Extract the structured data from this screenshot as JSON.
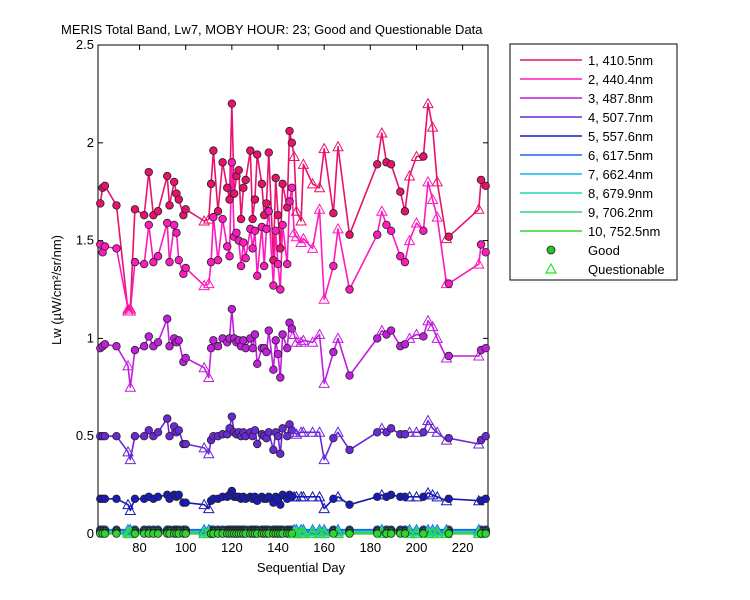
{
  "chart_data": {
    "type": "line",
    "title": "MERIS Total Band,  Lw7, MOBY HOUR: 23;  Good and Questionable Data",
    "xlabel": "Sequential Day",
    "ylabel": "Lw (µW/cm²/sr/nm)",
    "xlim": [
      62,
      231
    ],
    "ylim": [
      0,
      2.5
    ],
    "xticks": [
      80,
      100,
      120,
      140,
      160,
      180,
      200,
      220
    ],
    "yticks": [
      0,
      0.5,
      1,
      1.5,
      2,
      2.5
    ],
    "ytick_labels": [
      "0",
      "0.5",
      "1",
      "1.5",
      "2",
      "2.5"
    ],
    "grid": false,
    "legend_position": "outside-right-top",
    "x": [
      63,
      64,
      65,
      70,
      75,
      76,
      78,
      82,
      84,
      86,
      88,
      92,
      93,
      95,
      96,
      97,
      99,
      100,
      108,
      110,
      111,
      112,
      114,
      116,
      118,
      119,
      120,
      121,
      122,
      123,
      124,
      125,
      126,
      128,
      129,
      130,
      131,
      133,
      134,
      135,
      136,
      138,
      139,
      140,
      141,
      142,
      144,
      145,
      146,
      147,
      148,
      150,
      151,
      155,
      158,
      160,
      164,
      166,
      171,
      183,
      185,
      187,
      189,
      193,
      195,
      197,
      200,
      203,
      205,
      207,
      209,
      213,
      214,
      227,
      228,
      230
    ],
    "series": [
      {
        "name": "1, 410.5nm",
        "color": "#e8126c",
        "values": [
          1.69,
          1.77,
          1.78,
          1.68,
          1.14,
          1.15,
          1.66,
          1.63,
          1.85,
          1.63,
          1.65,
          1.83,
          1.68,
          1.8,
          1.74,
          1.71,
          1.63,
          1.66,
          1.6,
          1.61,
          1.79,
          1.96,
          1.65,
          1.9,
          1.77,
          1.71,
          2.2,
          1.74,
          1.83,
          1.86,
          1.61,
          1.77,
          1.81,
          1.96,
          1.61,
          1.71,
          1.94,
          1.79,
          1.63,
          1.69,
          1.95,
          1.4,
          1.82,
          1.63,
          1.46,
          1.79,
          1.67,
          2.06,
          2.0,
          1.93,
          1.65,
          1.6,
          1.89,
          1.79,
          1.77,
          1.97,
          1.64,
          1.98,
          1.53,
          1.89,
          2.05,
          1.9,
          1.89,
          1.75,
          1.65,
          1.83,
          1.93,
          1.93,
          2.2,
          2.08,
          1.8,
          1.51,
          1.52,
          1.66,
          1.81,
          1.78
        ],
        "good": [
          1,
          1,
          1,
          1,
          0,
          0,
          1,
          1,
          1,
          1,
          1,
          1,
          1,
          1,
          1,
          1,
          1,
          1,
          0,
          0,
          1,
          1,
          1,
          1,
          1,
          1,
          1,
          1,
          1,
          1,
          1,
          1,
          1,
          1,
          1,
          1,
          1,
          1,
          1,
          1,
          1,
          1,
          1,
          1,
          1,
          1,
          1,
          1,
          1,
          0,
          0,
          0,
          0,
          0,
          0,
          0,
          1,
          0,
          1,
          1,
          0,
          1,
          1,
          1,
          1,
          0,
          0,
          1,
          0,
          0,
          0,
          0,
          1,
          0,
          1,
          1
        ]
      },
      {
        "name": "2, 440.4nm",
        "color": "#ff1abf",
        "values": [
          1.48,
          1.44,
          1.47,
          1.46,
          1.15,
          1.14,
          1.39,
          1.38,
          1.58,
          1.39,
          1.42,
          1.59,
          1.39,
          1.58,
          1.54,
          1.4,
          1.33,
          1.36,
          1.27,
          1.28,
          1.39,
          1.62,
          1.4,
          1.61,
          1.47,
          1.42,
          1.9,
          1.52,
          1.54,
          1.5,
          1.37,
          1.49,
          1.41,
          1.56,
          1.46,
          1.55,
          1.32,
          1.57,
          1.37,
          1.56,
          1.65,
          1.27,
          1.55,
          1.38,
          1.25,
          1.58,
          1.38,
          1.7,
          1.77,
          1.54,
          1.52,
          1.49,
          1.51,
          1.46,
          1.66,
          1.2,
          1.37,
          1.56,
          1.25,
          1.53,
          1.65,
          1.58,
          1.55,
          1.42,
          1.39,
          1.5,
          1.59,
          1.55,
          1.8,
          1.71,
          1.62,
          1.28,
          1.28,
          1.38,
          1.48,
          1.44
        ],
        "good": [
          1,
          1,
          1,
          1,
          0,
          0,
          1,
          1,
          1,
          1,
          1,
          1,
          1,
          1,
          1,
          1,
          1,
          1,
          0,
          0,
          1,
          1,
          1,
          1,
          1,
          1,
          1,
          1,
          1,
          1,
          1,
          1,
          1,
          1,
          1,
          1,
          1,
          1,
          1,
          1,
          1,
          1,
          1,
          1,
          1,
          1,
          1,
          1,
          1,
          0,
          0,
          0,
          0,
          0,
          0,
          0,
          1,
          0,
          1,
          1,
          0,
          1,
          1,
          1,
          1,
          0,
          0,
          1,
          0,
          0,
          0,
          0,
          1,
          0,
          1,
          1
        ]
      },
      {
        "name": "3, 487.8nm",
        "color": "#c21ee0",
        "values": [
          0.95,
          0.96,
          0.97,
          0.96,
          0.86,
          0.75,
          0.94,
          0.96,
          1.01,
          0.96,
          0.98,
          1.1,
          0.96,
          1.0,
          0.98,
          0.99,
          0.88,
          0.9,
          0.85,
          0.8,
          0.95,
          0.99,
          0.96,
          1.0,
          0.98,
          1.0,
          1.15,
          1.0,
          0.98,
          0.99,
          0.96,
          0.99,
          0.95,
          1.0,
          0.95,
          1.02,
          0.87,
          0.95,
          0.95,
          0.93,
          1.04,
          0.84,
          0.99,
          0.92,
          0.8,
          1.02,
          0.95,
          1.08,
          1.05,
          1.02,
          0.98,
          0.98,
          0.99,
          0.98,
          1.02,
          0.77,
          0.93,
          1.0,
          0.81,
          1.0,
          1.04,
          1.02,
          1.04,
          0.96,
          0.97,
          1.0,
          1.02,
          1.01,
          1.09,
          1.06,
          1.0,
          0.9,
          0.91,
          0.91,
          0.94,
          0.95
        ],
        "good": [
          1,
          1,
          1,
          1,
          0,
          0,
          1,
          1,
          1,
          1,
          1,
          1,
          1,
          1,
          1,
          1,
          1,
          1,
          0,
          0,
          1,
          1,
          1,
          1,
          1,
          1,
          1,
          1,
          1,
          1,
          1,
          1,
          1,
          1,
          1,
          1,
          1,
          1,
          1,
          1,
          1,
          1,
          1,
          1,
          1,
          1,
          1,
          1,
          1,
          0,
          0,
          0,
          0,
          0,
          0,
          0,
          1,
          0,
          1,
          1,
          0,
          1,
          1,
          1,
          1,
          0,
          0,
          1,
          0,
          0,
          0,
          0,
          1,
          0,
          1,
          1
        ]
      },
      {
        "name": "4, 507.7nm",
        "color": "#6a28d8",
        "values": [
          0.5,
          0.5,
          0.5,
          0.5,
          0.42,
          0.38,
          0.5,
          0.5,
          0.53,
          0.5,
          0.52,
          0.59,
          0.5,
          0.55,
          0.52,
          0.53,
          0.46,
          0.46,
          0.44,
          0.41,
          0.48,
          0.5,
          0.5,
          0.51,
          0.51,
          0.54,
          0.6,
          0.52,
          0.51,
          0.52,
          0.5,
          0.52,
          0.5,
          0.52,
          0.5,
          0.53,
          0.46,
          0.51,
          0.5,
          0.49,
          0.52,
          0.43,
          0.52,
          0.5,
          0.41,
          0.54,
          0.5,
          0.56,
          0.53,
          0.52,
          0.51,
          0.52,
          0.52,
          0.52,
          0.52,
          0.38,
          0.49,
          0.52,
          0.43,
          0.52,
          0.54,
          0.52,
          0.54,
          0.51,
          0.51,
          0.52,
          0.52,
          0.52,
          0.58,
          0.54,
          0.52,
          0.48,
          0.49,
          0.46,
          0.48,
          0.5
        ],
        "good": [
          1,
          1,
          1,
          1,
          0,
          0,
          1,
          1,
          1,
          1,
          1,
          1,
          1,
          1,
          1,
          1,
          1,
          1,
          0,
          0,
          1,
          1,
          1,
          1,
          1,
          1,
          1,
          1,
          1,
          1,
          1,
          1,
          1,
          1,
          1,
          1,
          1,
          1,
          1,
          1,
          1,
          1,
          1,
          1,
          1,
          1,
          1,
          1,
          1,
          0,
          0,
          0,
          0,
          0,
          0,
          0,
          1,
          0,
          1,
          1,
          0,
          1,
          1,
          1,
          1,
          0,
          0,
          1,
          0,
          0,
          0,
          0,
          1,
          0,
          1,
          1
        ]
      },
      {
        "name": "5, 557.6nm",
        "color": "#1a1ab8",
        "values": [
          0.18,
          0.18,
          0.18,
          0.18,
          0.15,
          0.12,
          0.18,
          0.18,
          0.19,
          0.18,
          0.19,
          0.2,
          0.18,
          0.2,
          0.19,
          0.2,
          0.16,
          0.16,
          0.15,
          0.13,
          0.17,
          0.18,
          0.18,
          0.19,
          0.19,
          0.2,
          0.22,
          0.19,
          0.19,
          0.19,
          0.18,
          0.19,
          0.18,
          0.19,
          0.18,
          0.19,
          0.17,
          0.19,
          0.18,
          0.18,
          0.19,
          0.16,
          0.19,
          0.18,
          0.15,
          0.2,
          0.18,
          0.2,
          0.19,
          0.19,
          0.19,
          0.19,
          0.19,
          0.19,
          0.19,
          0.13,
          0.18,
          0.19,
          0.15,
          0.19,
          0.2,
          0.19,
          0.2,
          0.19,
          0.19,
          0.19,
          0.19,
          0.19,
          0.21,
          0.2,
          0.19,
          0.17,
          0.18,
          0.17,
          0.17,
          0.18
        ],
        "good": [
          1,
          1,
          1,
          1,
          0,
          0,
          1,
          1,
          1,
          1,
          1,
          1,
          1,
          1,
          1,
          1,
          1,
          1,
          0,
          0,
          1,
          1,
          1,
          1,
          1,
          1,
          1,
          1,
          1,
          1,
          1,
          1,
          1,
          1,
          1,
          1,
          1,
          1,
          1,
          1,
          1,
          1,
          1,
          1,
          1,
          1,
          1,
          1,
          1,
          0,
          0,
          0,
          0,
          0,
          0,
          0,
          1,
          0,
          1,
          1,
          0,
          1,
          1,
          1,
          1,
          0,
          0,
          1,
          0,
          0,
          0,
          0,
          1,
          0,
          1,
          1
        ]
      },
      {
        "name": "6, 617.5nm",
        "color": "#1e64e6",
        "const": 0.022
      },
      {
        "name": "7, 662.4nm",
        "color": "#18b4e8",
        "const": 0.014
      },
      {
        "name": "8, 679.9nm",
        "color": "#1ed6b0",
        "const": 0.012
      },
      {
        "name": "9, 706.2nm",
        "color": "#28d878",
        "const": 0.006
      },
      {
        "name": "10, 752.5nm",
        "color": "#2ed630",
        "const": 0.002
      }
    ],
    "legend": {
      "entries": [
        "1, 410.5nm",
        "2, 440.4nm",
        "3, 487.8nm",
        "4, 507.7nm",
        "5, 557.6nm",
        "6, 617.5nm",
        "7, 662.4nm",
        "8, 679.9nm",
        "9, 706.2nm",
        "10, 752.5nm"
      ],
      "good_label": "Good",
      "questionable_label": "Questionable",
      "good_color": "#23c423",
      "questionable_color": "#1ee61e"
    }
  }
}
